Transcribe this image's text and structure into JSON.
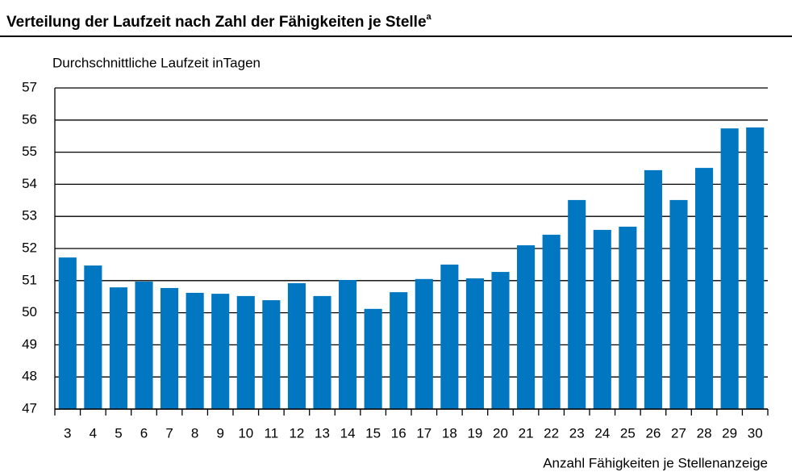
{
  "chart_data": {
    "type": "bar",
    "title": "Verteilung der Laufzeit nach Zahl der Fähigkeiten je Stelle",
    "title_superscript": "a",
    "y_label": "Durchschnittliche Laufzeit inTagen",
    "x_label": "Anzahl Fähigkeiten je Stellenanzeige",
    "categories": [
      "3",
      "4",
      "5",
      "6",
      "7",
      "8",
      "9",
      "10",
      "11",
      "12",
      "13",
      "14",
      "15",
      "16",
      "17",
      "18",
      "19",
      "20",
      "21",
      "22",
      "23",
      "24",
      "25",
      "26",
      "27",
      "28",
      "29",
      "30"
    ],
    "values": [
      51.72,
      51.47,
      50.79,
      50.97,
      50.77,
      50.62,
      50.59,
      50.52,
      50.39,
      50.92,
      50.52,
      51.02,
      50.12,
      50.64,
      51.05,
      51.5,
      51.07,
      51.27,
      52.1,
      52.43,
      53.51,
      52.58,
      52.68,
      54.44,
      53.51,
      54.51,
      55.74,
      55.77
    ],
    "color": "#0077c0",
    "ylim": [
      47,
      57
    ],
    "yticks": [
      47,
      48,
      49,
      50,
      51,
      52,
      53,
      54,
      55,
      56,
      57
    ],
    "grid": true
  }
}
